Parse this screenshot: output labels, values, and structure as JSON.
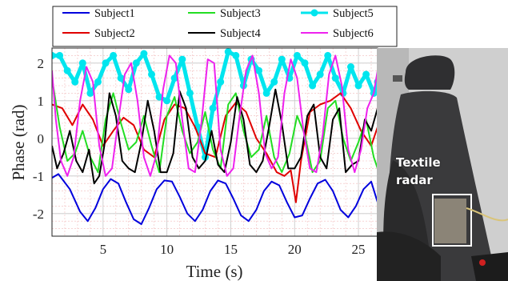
{
  "chart_data": {
    "type": "line",
    "xlabel": "Time (s)",
    "ylabel": "Phase (rad)",
    "xlim": [
      1,
      26.5
    ],
    "ylim": [
      -2.6,
      2.4
    ],
    "xticks": [
      5,
      10,
      15,
      20,
      25
    ],
    "yticks": [
      -2,
      -1,
      0,
      1,
      2
    ],
    "grid": true,
    "legend_position": "top",
    "series": [
      {
        "name": "Subject1",
        "color": "#0000dd",
        "marker": "none",
        "x": [
          1,
          1.5,
          2.4,
          3.2,
          3.8,
          4.4,
          5,
          5.6,
          6.2,
          6.8,
          7.4,
          8,
          8.6,
          9.2,
          9.8,
          10.4,
          11,
          11.6,
          12.2,
          12.8,
          13.4,
          14,
          14.6,
          15.2,
          15.8,
          16.4,
          17,
          17.6,
          18.2,
          18.8,
          19.4,
          20,
          20.6,
          21.2,
          21.8,
          22.4,
          23,
          23.6,
          24.2,
          24.8,
          25.4,
          26,
          26.5
        ],
        "y": [
          -1.05,
          -0.95,
          -1.35,
          -1.95,
          -2.2,
          -1.85,
          -1.35,
          -1.08,
          -1.2,
          -1.7,
          -2.15,
          -2.28,
          -1.85,
          -1.35,
          -1.12,
          -1.15,
          -1.55,
          -2.0,
          -2.2,
          -1.9,
          -1.4,
          -1.12,
          -1.2,
          -1.6,
          -2.05,
          -2.2,
          -1.9,
          -1.4,
          -1.15,
          -1.25,
          -1.7,
          -2.1,
          -2.05,
          -1.6,
          -1.2,
          -1.1,
          -1.4,
          -1.9,
          -2.1,
          -1.8,
          -1.35,
          -1.15,
          -1.7
        ]
      },
      {
        "name": "Subject2",
        "color": "#e00000",
        "marker": "none",
        "x": [
          1,
          1.8,
          2.6,
          3.4,
          4.2,
          5,
          5.8,
          6.6,
          7.4,
          8.2,
          9,
          9.8,
          10.6,
          11.4,
          12.2,
          13,
          13.8,
          14.6,
          15.4,
          16.2,
          17,
          17.8,
          18.6,
          19.2,
          19.7,
          20.1,
          20.5,
          21.2,
          22,
          22.8,
          23.6,
          24.4,
          25.2,
          26,
          26.5
        ],
        "y": [
          0.9,
          0.8,
          0.35,
          0.9,
          0.5,
          -0.2,
          0.2,
          0.55,
          0.35,
          -0.3,
          -0.5,
          0.5,
          0.9,
          0.8,
          0.3,
          -0.4,
          -0.5,
          0.6,
          0.95,
          0.7,
          0.0,
          -0.4,
          -0.9,
          -1.0,
          -0.85,
          -1.7,
          -0.6,
          0.7,
          0.9,
          1.0,
          1.2,
          0.8,
          0.2,
          -0.2,
          0.3
        ]
      },
      {
        "name": "Subject3",
        "color": "#22dd22",
        "marker": "none",
        "x": [
          1,
          1.6,
          2.2,
          2.8,
          3.4,
          4,
          4.6,
          5.2,
          5.8,
          6.4,
          7,
          7.6,
          8.2,
          8.8,
          9.4,
          10,
          10.6,
          11.2,
          11.8,
          12.4,
          13,
          13.6,
          14.2,
          14.8,
          15.4,
          16,
          16.6,
          17.2,
          17.8,
          18.4,
          19,
          19.6,
          20.2,
          20.8,
          21.4,
          22,
          22.6,
          23.2,
          23.8,
          24.4,
          25,
          25.6,
          26.2,
          26.5
        ],
        "y": [
          1.6,
          0.3,
          -0.6,
          -0.4,
          0.2,
          -0.5,
          -0.9,
          0.5,
          1.2,
          0.4,
          -0.3,
          -0.1,
          0.6,
          -0.2,
          -0.9,
          0.6,
          1.1,
          0.2,
          -0.4,
          -0.1,
          0.7,
          -0.3,
          -0.8,
          0.9,
          1.2,
          0.2,
          -0.5,
          -0.3,
          0.6,
          -0.5,
          -0.9,
          -0.4,
          0.6,
          0.1,
          -0.9,
          -0.6,
          0.8,
          1.0,
          0.0,
          -0.6,
          -0.1,
          0.5,
          -0.5,
          -0.8
        ]
      },
      {
        "name": "Subject4",
        "color": "#000000",
        "marker": "none",
        "x": [
          1,
          1.4,
          1.9,
          2.4,
          2.9,
          3.4,
          3.9,
          4.3,
          4.7,
          5.1,
          5.5,
          6,
          6.5,
          7,
          7.5,
          8,
          8.5,
          9,
          9.5,
          10,
          10.5,
          11,
          11.5,
          12,
          12.5,
          13,
          13.5,
          14,
          14.5,
          15,
          15.5,
          16,
          16.5,
          17,
          17.5,
          18,
          18.5,
          19,
          19.5,
          20,
          20.5,
          21,
          21.5,
          22,
          22.5,
          23,
          23.5,
          24,
          24.5,
          25,
          25.5,
          26,
          26.5
        ],
        "y": [
          -0.2,
          -0.8,
          -0.4,
          0.2,
          -0.6,
          -0.9,
          -0.3,
          -1.2,
          -1.0,
          -0.2,
          1.2,
          0.6,
          -0.6,
          -0.8,
          -0.9,
          -0.1,
          1.0,
          0.2,
          -0.9,
          -0.9,
          -0.4,
          1.25,
          0.8,
          -0.5,
          -0.8,
          -0.6,
          0.2,
          -0.7,
          -0.9,
          -0.1,
          1.1,
          0.5,
          -0.7,
          -0.9,
          -0.6,
          0.3,
          1.3,
          0.4,
          -0.8,
          -0.8,
          -0.5,
          0.6,
          0.9,
          -0.5,
          -0.8,
          0.5,
          0.8,
          -0.9,
          -0.7,
          -0.6,
          0.5,
          0.2,
          0.8
        ]
      },
      {
        "name": "Subject5",
        "color": "#00e5ee",
        "marker": "circle",
        "x": [
          1,
          1.6,
          2.2,
          2.8,
          3.4,
          4,
          4.6,
          5.2,
          5.8,
          6.4,
          7,
          7.6,
          8.2,
          8.8,
          9.4,
          10,
          10.6,
          11.2,
          11.8,
          12.4,
          13,
          13.6,
          14.2,
          14.8,
          15.4,
          16,
          16.6,
          17.2,
          17.8,
          18.4,
          19,
          19.6,
          20.2,
          20.8,
          21.4,
          22,
          22.6,
          23.2,
          23.8,
          24.4,
          25,
          25.6,
          26.2,
          26.5
        ],
        "y": [
          2.2,
          2.2,
          1.8,
          1.5,
          2.0,
          1.2,
          1.5,
          2.0,
          2.2,
          1.6,
          1.3,
          2.0,
          2.25,
          1.7,
          1.1,
          1.0,
          1.6,
          2.1,
          1.2,
          0.3,
          -0.5,
          0.8,
          1.5,
          2.3,
          2.2,
          1.4,
          2.1,
          1.8,
          1.2,
          1.5,
          2.1,
          1.6,
          2.2,
          2.0,
          1.4,
          1.7,
          2.2,
          1.6,
          1.2,
          1.9,
          1.4,
          1.7,
          1.2,
          1.5
        ]
      },
      {
        "name": "Subject6",
        "color": "#ee22ee",
        "marker": "none",
        "x": [
          1,
          1.3,
          1.7,
          2.2,
          2.7,
          3.2,
          3.7,
          4.2,
          4.7,
          5.2,
          5.7,
          6.2,
          6.7,
          7.2,
          7.7,
          8.2,
          8.7,
          9.2,
          9.7,
          10.2,
          10.7,
          11.2,
          11.7,
          12.2,
          12.7,
          13.2,
          13.7,
          14.2,
          14.7,
          15.2,
          15.7,
          16.2,
          16.7,
          17.2,
          17.7,
          18.2,
          18.7,
          19.2,
          19.7,
          20.2,
          20.7,
          21.2,
          21.7,
          22.2,
          22.7,
          23.2,
          23.7,
          24.2,
          24.7,
          25.2,
          25.7,
          26.2,
          26.5
        ],
        "y": [
          1.8,
          0.5,
          -0.6,
          -1.0,
          -0.5,
          1.0,
          1.9,
          1.5,
          -0.2,
          -1.0,
          -0.8,
          0.5,
          1.7,
          2.0,
          1.0,
          -0.5,
          -1.0,
          -0.4,
          1.3,
          2.2,
          2.0,
          0.5,
          -0.8,
          -0.9,
          0.4,
          2.1,
          2.0,
          -0.3,
          -1.0,
          -0.8,
          0.6,
          1.8,
          2.2,
          1.2,
          -0.4,
          -0.8,
          -0.5,
          1.2,
          2.1,
          1.6,
          0.2,
          -0.8,
          -0.9,
          0.1,
          1.7,
          2.2,
          1.4,
          -0.3,
          -0.9,
          -0.3,
          0.8,
          1.2,
          1.8
        ]
      }
    ]
  },
  "photo": {
    "caption": "Textile\nradar",
    "colors": {
      "background": "#cfcfcf",
      "seat": "#3a3a3c",
      "highlight_box": "#ffffff",
      "cushion": "#222222"
    }
  }
}
